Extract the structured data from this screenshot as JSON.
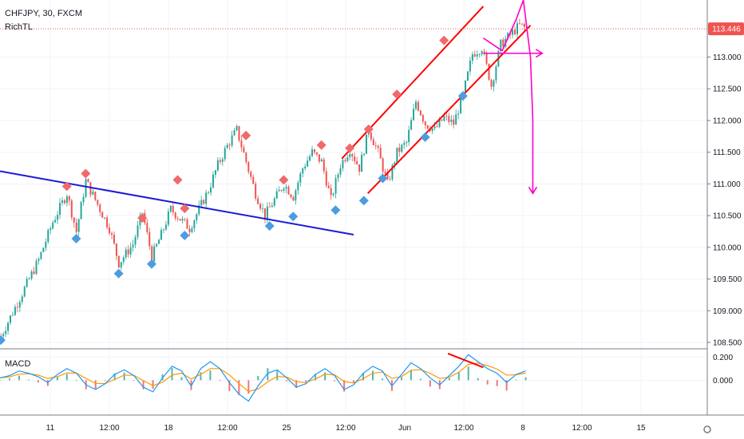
{
  "chart_data": {
    "type": "candlestick",
    "symbol_label": "CHFJPY, 30, FXCM",
    "indicator_label": "RichTL",
    "macd_label": "MACD",
    "current_price": "113.446",
    "colors": {
      "up": "#26a69a",
      "down": "#ef5350",
      "trendline": "#1a1adb",
      "channel": "#ff0000",
      "forecast": "#ff00c8",
      "pivot_high": "#f06a6a",
      "pivot_low": "#4a9de0",
      "macd_line": "#2196f3",
      "signal_line": "#ff9800",
      "price_tag": "#ef5350"
    },
    "price_axis": {
      "min": 108.4,
      "max": 113.9,
      "ticks": [
        "108.500",
        "109.000",
        "109.500",
        "110.000",
        "110.500",
        "111.000",
        "111.500",
        "112.000",
        "112.500",
        "113.000"
      ]
    },
    "macd_axis": {
      "min": -0.3,
      "max": 0.25,
      "ticks": [
        "0.200",
        "0.000"
      ]
    },
    "time_axis": {
      "labels": [
        "11",
        "12:00",
        "18",
        "12:00",
        "25",
        "12:00",
        "Jun",
        "12:00",
        "8",
        "12:00",
        "15"
      ]
    },
    "price_path": [
      [
        0,
        108.6
      ],
      [
        8,
        109.2
      ],
      [
        16,
        109.8
      ],
      [
        22,
        110.4
      ],
      [
        28,
        110.85
      ],
      [
        32,
        110.25
      ],
      [
        36,
        111.05
      ],
      [
        42,
        110.6
      ],
      [
        46,
        110.3
      ],
      [
        50,
        109.75
      ],
      [
        56,
        110.05
      ],
      [
        60,
        110.55
      ],
      [
        64,
        109.85
      ],
      [
        68,
        110.2
      ],
      [
        72,
        110.6
      ],
      [
        76,
        110.45
      ],
      [
        80,
        110.3
      ],
      [
        84,
        110.6
      ],
      [
        88,
        110.9
      ],
      [
        92,
        111.3
      ],
      [
        96,
        111.6
      ],
      [
        100,
        111.85
      ],
      [
        104,
        111.35
      ],
      [
        108,
        110.85
      ],
      [
        112,
        110.5
      ],
      [
        116,
        110.75
      ],
      [
        120,
        111.0
      ],
      [
        124,
        110.8
      ],
      [
        128,
        111.25
      ],
      [
        132,
        111.5
      ],
      [
        136,
        111.35
      ],
      [
        140,
        110.75
      ],
      [
        144,
        111.3
      ],
      [
        148,
        111.55
      ],
      [
        152,
        111.25
      ],
      [
        156,
        111.85
      ],
      [
        160,
        111.5
      ],
      [
        164,
        111.0
      ],
      [
        168,
        111.5
      ],
      [
        172,
        111.65
      ],
      [
        176,
        112.3
      ],
      [
        180,
        111.95
      ],
      [
        184,
        111.85
      ],
      [
        188,
        112.05
      ],
      [
        192,
        111.95
      ],
      [
        196,
        112.4
      ],
      [
        200,
        113.05
      ],
      [
        204,
        113.15
      ],
      [
        208,
        112.55
      ],
      [
        212,
        113.2
      ],
      [
        216,
        113.35
      ],
      [
        220,
        113.5
      ],
      [
        223,
        113.446
      ]
    ],
    "pivot_highs": [
      [
        28,
        110.85
      ],
      [
        36,
        111.05
      ],
      [
        60,
        110.35
      ],
      [
        75,
        110.95
      ],
      [
        78,
        110.5
      ],
      [
        104,
        111.65
      ],
      [
        120,
        110.95
      ],
      [
        136,
        111.5
      ],
      [
        148,
        111.45
      ],
      [
        156,
        111.75
      ],
      [
        168,
        112.3
      ],
      [
        188,
        113.15
      ]
    ],
    "pivot_lows": [
      [
        0,
        108.65
      ],
      [
        32,
        110.25
      ],
      [
        50,
        109.7
      ],
      [
        64,
        109.85
      ],
      [
        78,
        110.3
      ],
      [
        114,
        110.45
      ],
      [
        124,
        110.6
      ],
      [
        142,
        110.7
      ],
      [
        154,
        110.85
      ],
      [
        162,
        111.2
      ],
      [
        180,
        111.85
      ],
      [
        196,
        112.5
      ]
    ],
    "trendline": [
      [
        0,
        111.2
      ],
      [
        150,
        110.2
      ]
    ],
    "channel_upper": [
      [
        145,
        111.4
      ],
      [
        205,
        113.8
      ]
    ],
    "channel_lower": [
      [
        156,
        110.85
      ],
      [
        225,
        113.5
      ]
    ],
    "forecast_path": [
      [
        205,
        113.3
      ],
      [
        213,
        113.1
      ],
      [
        219,
        113.6
      ],
      [
        222,
        113.9
      ],
      [
        225,
        113.0
      ],
      [
        226,
        112.0
      ],
      [
        226,
        110.85
      ]
    ],
    "forecast_arrow": [
      [
        205,
        113.06
      ],
      [
        230,
        113.06
      ]
    ],
    "macd_series": [
      0.02,
      0.04,
      0.08,
      0.06,
      0.03,
      -0.02,
      0.05,
      0.1,
      0.06,
      -0.04,
      -0.08,
      -0.03,
      0.05,
      0.09,
      0.04,
      -0.06,
      -0.1,
      0.02,
      0.12,
      0.08,
      -0.05,
      0.1,
      0.16,
      0.1,
      -0.02,
      -0.12,
      -0.18,
      -0.05,
      0.06,
      0.09,
      0.02,
      -0.06,
      -0.03,
      0.05,
      0.1,
      0.04,
      -0.08,
      -0.04,
      0.06,
      0.12,
      0.08,
      -0.05,
      0.05,
      0.15,
      0.1,
      0.02,
      -0.04,
      0.04,
      0.12,
      0.22,
      0.16,
      0.1,
      0.06,
      -0.02,
      0.05,
      0.08
    ],
    "macd_divergence": [
      [
        190,
        0.23
      ],
      [
        205,
        0.11
      ]
    ]
  }
}
